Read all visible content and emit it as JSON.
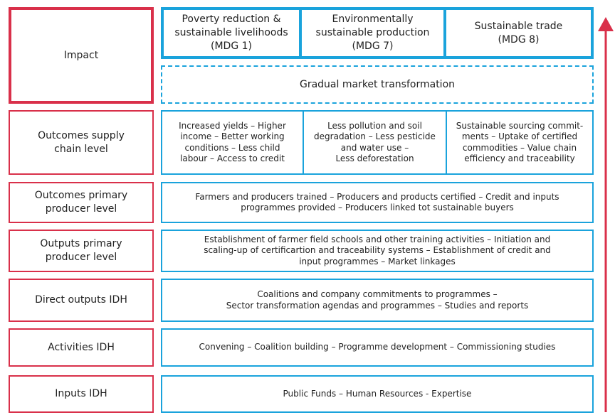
{
  "impact": {
    "label": [
      "Impact"
    ],
    "goals": [
      [
        "Poverty reduction &",
        "sustainable livelihoods",
        "(MDG 1)"
      ],
      [
        "Environmentally",
        "sustainable production",
        "(MDG 7)"
      ],
      [
        "Sustainable trade",
        "(MDG 8)"
      ]
    ],
    "transformation": [
      "Gradual market transformation"
    ]
  },
  "levels": [
    {
      "label": [
        "Outcomes supply",
        "chain level"
      ],
      "cells": [
        [
          "Increased yields – Higher",
          "income – Better working",
          "conditions – Less child",
          "labour – Access to credit"
        ],
        [
          "Less pollution and soil",
          "degradation – Less pesticide",
          "and water use –",
          "Less deforestation"
        ],
        [
          "Sustainable sourcing commit-",
          "ments – Uptake of certified",
          "commodities – Value chain",
          "efficiency and traceability"
        ]
      ]
    },
    {
      "label": [
        "Outcomes primary",
        "producer level"
      ],
      "cells": [
        [
          "Farmers and producers trained – Producers and products certified – Credit and inputs",
          "programmes provided – Producers linked tot sustainable buyers"
        ]
      ]
    },
    {
      "label": [
        "Outputs primary",
        "producer level"
      ],
      "cells": [
        [
          "Establishment of farmer field schools and other training activities – Initiation and",
          "scaling-up of certificartion and traceability systems – Establishment of credit and",
          "input programmes – Market linkages"
        ]
      ]
    },
    {
      "label": [
        "Direct outputs IDH"
      ],
      "cells": [
        [
          "Coalitions and company commitments to programmes –",
          "Sector transformation agendas and programmes – Studies and reports"
        ]
      ]
    },
    {
      "label": [
        "Activities IDH"
      ],
      "cells": [
        [
          "Convening – Coalition building – Programme development – Commissioning studies"
        ]
      ]
    },
    {
      "label": [
        "Inputs IDH"
      ],
      "cells": [
        [
          "Public Funds – Human Resources - Expertise"
        ]
      ]
    }
  ]
}
